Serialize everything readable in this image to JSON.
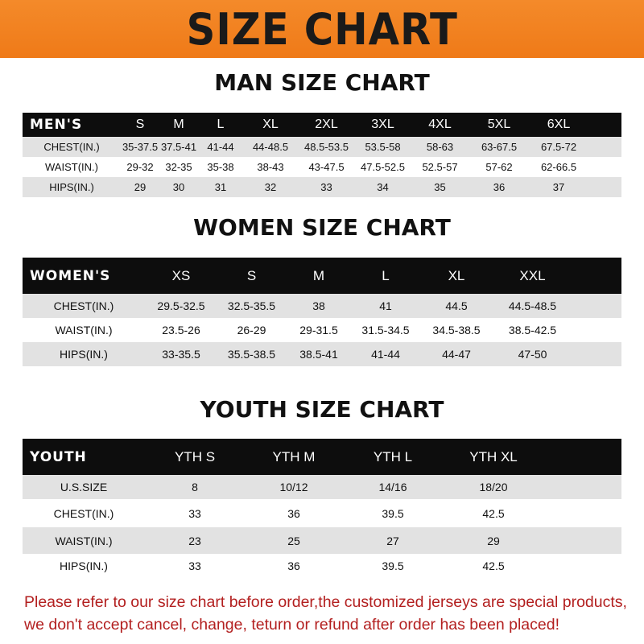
{
  "banner": "SIZE CHART",
  "men": {
    "title": "MAN SIZE CHART",
    "headers": [
      "MEN'S",
      "S",
      "M",
      "L",
      "XL",
      "2XL",
      "3XL",
      "4XL",
      "5XL",
      "6XL"
    ],
    "rows": [
      [
        "CHEST(IN.)",
        "35-37.5",
        "37.5-41",
        "41-44",
        "44-48.5",
        "48.5-53.5",
        "53.5-58",
        "58-63",
        "63-67.5",
        "67.5-72"
      ],
      [
        "WAIST(IN.)",
        "29-32",
        "32-35",
        "35-38",
        "38-43",
        "43-47.5",
        "47.5-52.5",
        "52.5-57",
        "57-62",
        "62-66.5"
      ],
      [
        "HIPS(IN.)",
        "29",
        "30",
        "31",
        "32",
        "33",
        "34",
        "35",
        "36",
        "37"
      ]
    ]
  },
  "women": {
    "title": "WOMEN SIZE CHART",
    "headers": [
      "WOMEN'S",
      "XS",
      "S",
      "M",
      "L",
      "XL",
      "XXL"
    ],
    "rows": [
      [
        "CHEST(IN.)",
        "29.5-32.5",
        "32.5-35.5",
        "38",
        "41",
        "44.5",
        "44.5-48.5"
      ],
      [
        "WAIST(IN.)",
        "23.5-26",
        "26-29",
        "29-31.5",
        "31.5-34.5",
        "34.5-38.5",
        "38.5-42.5"
      ],
      [
        "HIPS(IN.)",
        "33-35.5",
        "35.5-38.5",
        "38.5-41",
        "41-44",
        "44-47",
        "47-50"
      ]
    ]
  },
  "youth": {
    "title": "YOUTH SIZE CHART",
    "headers": [
      "YOUTH",
      "YTH S",
      "YTH M",
      "YTH L",
      "YTH XL"
    ],
    "rows": [
      [
        "U.S.SIZE",
        "8",
        "10/12",
        "14/16",
        "18/20"
      ],
      [
        "CHEST(IN.)",
        "33",
        "36",
        "39.5",
        "42.5"
      ],
      [
        "WAIST(IN.)",
        "23",
        "25",
        "27",
        "29"
      ],
      [
        "HIPS(IN.)",
        "33",
        "36",
        "39.5",
        "42.5"
      ]
    ]
  },
  "notice": {
    "line1": "Please refer to our size chart before order,the customized jerseys are special products,",
    "line2": "we don't accept cancel, change, teturn or refund after order has been placed!"
  },
  "colors": {
    "banner": "#f07f1e",
    "header_row": "#0d0d0d",
    "stripe": "#e2e2e2",
    "notice": "#b32020"
  }
}
